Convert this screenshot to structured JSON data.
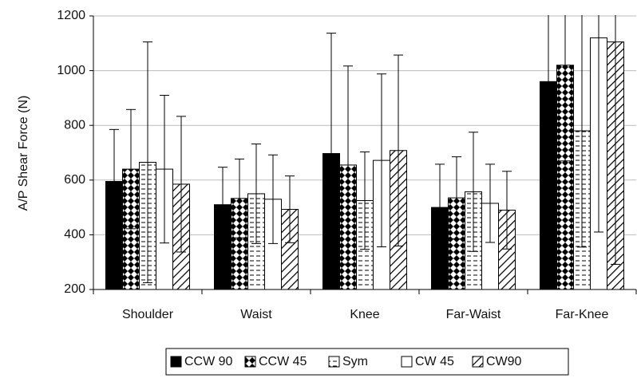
{
  "chart_data": {
    "type": "bar",
    "ylabel": "A/P Shear Force (N)",
    "categories": [
      "Shoulder",
      "Waist",
      "Knee",
      "Far-Waist",
      "Far-Knee"
    ],
    "series": [
      {
        "name": "CCW 90",
        "color": "#000000",
        "pattern": "solid",
        "values": [
          595,
          510,
          697,
          500,
          960
        ],
        "errors": [
          190,
          137,
          440,
          158,
          400
        ]
      },
      {
        "name": "CCW 45",
        "color": "#000000",
        "pattern": "diamond",
        "values": [
          640,
          533,
          655,
          535,
          1020
        ],
        "errors": [
          218,
          144,
          362,
          150,
          350
        ]
      },
      {
        "name": "Sym",
        "color": "#000000",
        "pattern": "dash",
        "values": [
          665,
          550,
          525,
          557,
          780
        ],
        "errors": [
          440,
          182,
          178,
          218,
          425
        ]
      },
      {
        "name": "CW 45",
        "color": "#000000",
        "pattern": "none",
        "values": [
          640,
          530,
          672,
          515,
          1120
        ],
        "errors": [
          270,
          162,
          316,
          143,
          710
        ]
      },
      {
        "name": "CW90",
        "color": "#000000",
        "pattern": "diagonal",
        "values": [
          585,
          493,
          708,
          490,
          1105
        ],
        "errors": [
          248,
          122,
          349,
          142,
          813
        ]
      }
    ],
    "ylim": [
      200,
      1200
    ],
    "yticks": [
      200,
      400,
      600,
      800,
      1000,
      1200
    ],
    "grid": true,
    "legend": "bottom"
  }
}
